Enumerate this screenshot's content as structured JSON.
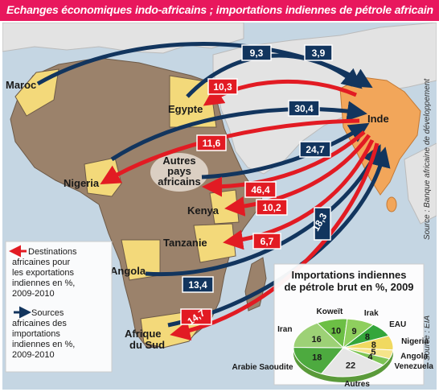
{
  "title": "Echanges économiques indo-africains ; importations indiennes de pétrole africain",
  "source_bank": "Source : Banque africaine de développement",
  "source_eia": "Source : EIA",
  "colors": {
    "title_bg": "#e8175d",
    "sea": "#c5d6e3",
    "africa": "#9b826b",
    "highlight": "#f3d97a",
    "india": "#f2a65a",
    "other_land": "#e3e3e3",
    "export_arrow": "#e21b23",
    "source_arrow": "#12355e"
  },
  "places": {
    "maroc": "Maroc",
    "egypte": "Egypte",
    "inde": "Inde",
    "nigeria": "Nigeria",
    "autres": [
      "Autres",
      "pays",
      "africains"
    ],
    "kenya": "Kenya",
    "tanzanie": "Tanzanie",
    "angola": "Angola",
    "afrique_sud": [
      "Afrique",
      "du Sud"
    ]
  },
  "flows": [
    {
      "id": "maroc-source",
      "partner": "Maroc",
      "type": "source",
      "value": "9,3"
    },
    {
      "id": "egypte-source",
      "partner": "Egypte",
      "type": "source",
      "value": "3,9"
    },
    {
      "id": "egypte-export",
      "partner": "Egypte",
      "type": "export",
      "value": "10,3"
    },
    {
      "id": "nigeria-source",
      "partner": "Nigeria",
      "type": "source",
      "value": "30,4"
    },
    {
      "id": "nigeria-export",
      "partner": "Nigeria",
      "type": "export",
      "value": "11,6"
    },
    {
      "id": "autres-source",
      "partner": "Autres pays africains",
      "type": "source",
      "value": "24,7"
    },
    {
      "id": "autres-export",
      "partner": "Autres pays africains",
      "type": "export",
      "value": "46,4"
    },
    {
      "id": "kenya-export",
      "partner": "Kenya",
      "type": "export",
      "value": "10,2"
    },
    {
      "id": "tanzanie-export",
      "partner": "Tanzanie",
      "type": "export",
      "value": "6,7"
    },
    {
      "id": "angola-source",
      "partner": "Angola",
      "type": "source",
      "value": "18,3"
    },
    {
      "id": "afriquesud-source",
      "partner": "Afrique du Sud",
      "type": "source",
      "value": "13,4"
    },
    {
      "id": "afriquesud-export",
      "partner": "Afrique du Sud",
      "type": "export",
      "value": "14,7"
    }
  ],
  "legend": {
    "exports": [
      "Destinations",
      "africaines pour",
      "les exportations",
      "indiennes en %,",
      "2009-2010"
    ],
    "sources": [
      "Sources",
      "africaines des",
      "importations",
      "indiennes en %,",
      "2009-2010"
    ]
  },
  "pie_title": [
    "Importations indiennes",
    "de pétrole brut en %, 2009"
  ],
  "chart_data": {
    "type": "pie",
    "title": "Importations indiennes de pétrole brut en %, 2009",
    "slices": [
      {
        "name": "Koweït",
        "value": 10,
        "color": "#6cbf45"
      },
      {
        "name": "Irak",
        "value": 9,
        "color": "#8fcf5e"
      },
      {
        "name": "EAU",
        "value": 8,
        "color": "#34a63b"
      },
      {
        "name": "Nigeria",
        "value": 8,
        "color": "#f0d960"
      },
      {
        "name": "Angola",
        "value": 5,
        "color": "#f5e48a"
      },
      {
        "name": "Venezuela",
        "value": 4,
        "color": "#7dc455"
      },
      {
        "name": "Autres",
        "value": 22,
        "color": "#e6e6e6"
      },
      {
        "name": "Arabie Saoudite",
        "value": 18,
        "color": "#4daa3f"
      },
      {
        "name": "Iran",
        "value": 16,
        "color": "#9dd176"
      }
    ]
  }
}
